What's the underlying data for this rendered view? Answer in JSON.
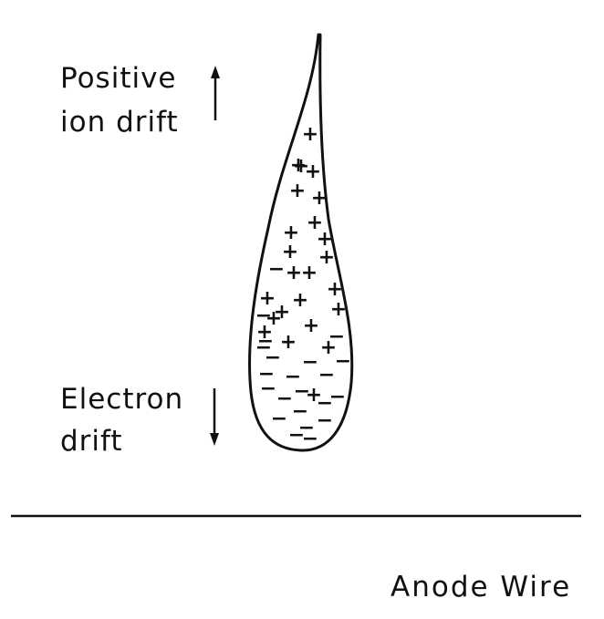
{
  "labels": {
    "positive_line1": "Positive",
    "positive_line2": "ion drift",
    "electron_line1": "Electron",
    "electron_line2": "drift",
    "anode": "Anode Wire"
  },
  "charges": [
    {
      "sign": "+"
    },
    {
      "sign": "+"
    },
    {
      "sign": "+"
    },
    {
      "sign": "+"
    },
    {
      "sign": "+"
    },
    {
      "sign": "+"
    },
    {
      "sign": "+"
    },
    {
      "sign": "+"
    },
    {
      "sign": "+"
    },
    {
      "sign": "+"
    },
    {
      "sign": "+"
    },
    {
      "sign": "+"
    },
    {
      "sign": "+"
    },
    {
      "sign": "+"
    },
    {
      "sign": "+"
    },
    {
      "sign": "+"
    },
    {
      "sign": "+"
    },
    {
      "sign": "+"
    },
    {
      "sign": "+"
    },
    {
      "sign": "+"
    },
    {
      "sign": "+"
    },
    {
      "sign": "+"
    },
    {
      "sign": "+"
    },
    {
      "sign": "+"
    },
    {
      "sign": "−"
    },
    {
      "sign": "−"
    },
    {
      "sign": "−"
    },
    {
      "sign": "−"
    },
    {
      "sign": "−"
    },
    {
      "sign": "−"
    },
    {
      "sign": "−"
    },
    {
      "sign": "−"
    },
    {
      "sign": "−"
    },
    {
      "sign": "−"
    },
    {
      "sign": "−"
    },
    {
      "sign": "−"
    },
    {
      "sign": "−"
    },
    {
      "sign": "−"
    },
    {
      "sign": "−"
    },
    {
      "sign": "−"
    },
    {
      "sign": "−"
    },
    {
      "sign": "−"
    },
    {
      "sign": "−"
    },
    {
      "sign": "−"
    },
    {
      "sign": "−"
    },
    {
      "sign": "−"
    }
  ],
  "colors": {
    "ink": "#111111",
    "background": "#ffffff"
  }
}
